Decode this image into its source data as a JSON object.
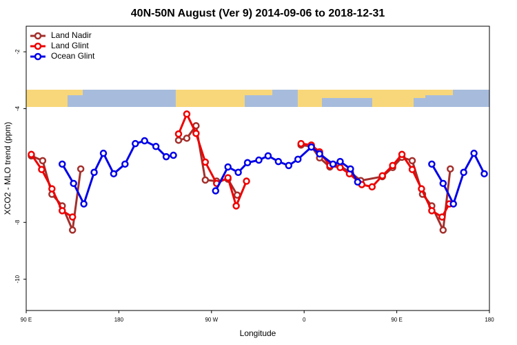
{
  "chart_data": {
    "type": "line",
    "title": "40N-50N August (Ver 9)   2014-09-06 to 2018-12-31",
    "x_label": "Longitude",
    "y_label": "XCO2 - MLO trend (ppm)",
    "xlim": [
      90,
      540
    ],
    "xticks": [
      {
        "value": 90,
        "label": "90 E"
      },
      {
        "value": 180,
        "label": "180"
      },
      {
        "value": 270,
        "label": "90 W"
      },
      {
        "value": 360,
        "label": "0"
      },
      {
        "value": 450,
        "label": "90 E"
      },
      {
        "value": 540,
        "label": "180"
      }
    ],
    "ylim": [
      -11.1,
      -1.1
    ],
    "yticks": [
      -10,
      -8,
      -4,
      -2
    ],
    "legend": "top-left",
    "series": [
      {
        "name": "Land Nadir",
        "color": "#a3302c",
        "x": [
          95,
          106,
          115,
          125,
          135,
          143,
          null,
          238,
          246,
          255,
          264,
          275,
          286,
          295,
          null,
          357,
          367,
          375,
          385,
          394,
          405,
          415,
          436,
          446,
          455,
          465,
          475,
          484,
          495,
          502
        ],
        "values": [
          -5.66,
          -5.83,
          -7.01,
          -7.42,
          -8.27,
          -6.12,
          null,
          -5.11,
          -5.04,
          -4.6,
          -6.51,
          -6.55,
          -6.48,
          -7.04,
          null,
          -5.28,
          -5.33,
          -5.73,
          -6.05,
          -6.0,
          -6.24,
          -6.53,
          -6.39,
          -6.07,
          -5.71,
          -5.83,
          -7.01,
          -7.42,
          -8.27,
          -6.12
        ]
      },
      {
        "name": "Land Glint",
        "color": "#ee0000",
        "x": [
          95,
          105,
          115,
          125,
          135,
          null,
          238,
          246,
          255,
          264,
          275,
          286,
          294,
          304,
          null,
          357,
          367,
          375,
          385,
          395,
          404,
          416,
          426,
          436,
          446,
          455,
          465,
          474,
          484,
          494,
          501
        ],
        "values": [
          -5.61,
          -6.14,
          -6.82,
          -7.59,
          -7.81,
          null,
          -4.89,
          -4.19,
          -4.87,
          -5.88,
          -6.63,
          -6.43,
          -7.42,
          -6.55,
          null,
          -5.23,
          -5.28,
          -5.52,
          -6.0,
          -6.07,
          -6.29,
          -6.67,
          -6.75,
          -6.36,
          -6.0,
          -5.61,
          -6.14,
          -6.82,
          -7.59,
          -7.81,
          -7.35
        ]
      },
      {
        "name": "Ocean Glint",
        "color": "#0000e8",
        "x": [
          125,
          136,
          146,
          156,
          165,
          175,
          186,
          196,
          205,
          216,
          226,
          233,
          null,
          274,
          286,
          296,
          305,
          316,
          325,
          335,
          345,
          354,
          367,
          375,
          388,
          395,
          405,
          412,
          null,
          484,
          495,
          505,
          515,
          525,
          535
        ],
        "values": [
          -5.95,
          -6.63,
          -7.35,
          -6.24,
          -5.57,
          -6.29,
          -5.95,
          -5.23,
          -5.13,
          -5.33,
          -5.69,
          -5.64,
          null,
          -6.89,
          -6.05,
          -6.24,
          -5.9,
          -5.81,
          -5.66,
          -5.86,
          -6.0,
          -5.78,
          -5.35,
          -5.59,
          -5.95,
          -5.86,
          -6.12,
          -6.58,
          null,
          -5.95,
          -6.63,
          -7.35,
          -6.24,
          -5.57,
          -6.29
        ]
      }
    ]
  }
}
